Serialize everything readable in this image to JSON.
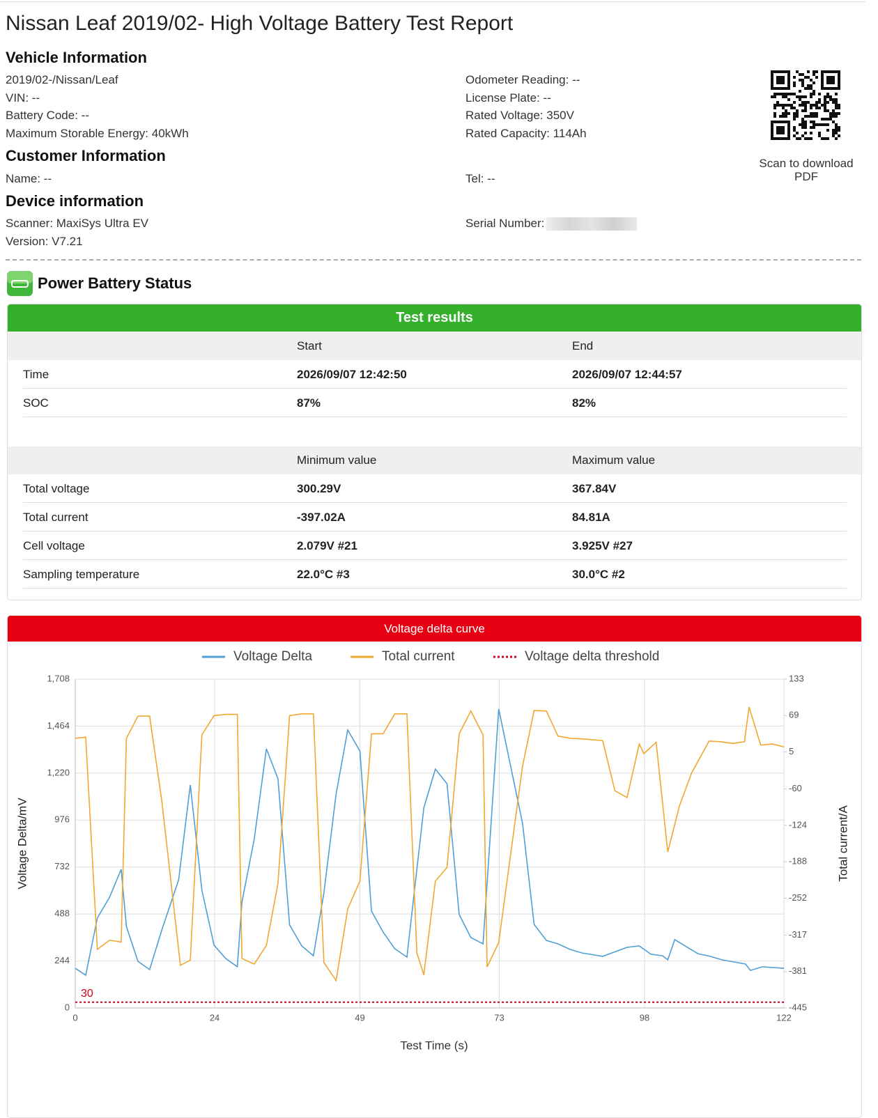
{
  "header": {
    "title": "Nissan Leaf 2019/02- High Voltage Battery Test Report"
  },
  "sections": [
    {
      "heading": "Vehicle Information",
      "left": [
        "2019/02-/Nissan/Leaf",
        "VIN: --",
        "Battery Code: --",
        "Maximum Storable Energy: 40kWh"
      ],
      "right": [
        "Odometer Reading: --",
        "License Plate: --",
        "Rated Voltage: 350V",
        "Rated Capacity: 114Ah"
      ]
    },
    {
      "heading": "Customer Information",
      "left": [
        "Name: --"
      ],
      "right": [
        "Tel: --"
      ]
    },
    {
      "heading": "Device information",
      "left": [
        "Scanner: MaxiSys Ultra EV",
        "Version: V7.21"
      ],
      "right": [
        "Serial Number:"
      ]
    }
  ],
  "qr": {
    "caption": "Scan to download PDF"
  },
  "status": {
    "title": "Power Battery Status"
  },
  "table": {
    "title": "Test results",
    "groups": [
      {
        "header": [
          "Start",
          "End"
        ],
        "rows": [
          [
            "Time",
            "2026/09/07 12:42:50",
            "2026/09/07 12:44:57"
          ],
          [
            "SOC",
            "87%",
            "82%"
          ]
        ]
      },
      {
        "header": [
          "Minimum value",
          "Maximum value"
        ],
        "rows": [
          [
            "Total voltage",
            "300.29V",
            "367.84V"
          ],
          [
            "Total current",
            "-397.02A",
            "84.81A"
          ],
          [
            "Cell voltage",
            "2.079V  #21",
            "3.925V  #27"
          ],
          [
            "Sampling temperature",
            "22.0°C  #3",
            "30.0°C  #2"
          ]
        ]
      }
    ]
  },
  "chart_data": {
    "type": "line",
    "title": "Voltage delta curve",
    "x_label": "Test Time (s)",
    "y_label": "Voltage Delta/mV",
    "y2_label": "Total current/A",
    "xlim": [
      0,
      122
    ],
    "xticks": [
      0,
      24,
      49,
      73,
      98,
      122
    ],
    "ylim": [
      0,
      1708
    ],
    "yticks": [
      0,
      244,
      488,
      732,
      976,
      {
        "value": 1220,
        "label": "1,220"
      },
      {
        "value": 1464,
        "label": "1,464"
      },
      {
        "value": 1708,
        "label": "1,708"
      }
    ],
    "y2lim": [
      -445,
      133
    ],
    "y2ticks": [
      -445,
      -381,
      -317,
      -252,
      -188,
      -124,
      -60,
      5,
      69,
      133
    ],
    "grid": true,
    "series": [
      {
        "name": "Voltage Delta",
        "color": "#4f9fd4",
        "x": [
          0,
          1.8,
          3.8,
          5.9,
          7.9,
          8.8,
          10.8,
          12.8,
          14.9,
          17.8,
          19.8,
          21.8,
          23.9,
          25.9,
          27.9,
          28.7,
          30.8,
          32.9,
          34.9,
          36.9,
          39.0,
          41.0,
          42.8,
          44.9,
          46.9,
          49.0,
          51.0,
          53.0,
          55.0,
          57.1,
          60.0,
          62.0,
          64.0,
          66.1,
          68.1,
          70.2,
          72.9,
          77.0,
          79.0,
          81.1,
          83.1,
          85.2,
          87.2,
          90.8,
          95.0,
          97.1,
          99.1,
          101.1,
          102.0,
          103.2,
          105.2,
          107.2,
          109.3,
          111.3,
          113.4,
          115.4,
          116.2,
          118.3,
          122
        ],
        "values": [
          206,
          170,
          467,
          575,
          720,
          423,
          242,
          199,
          405,
          666,
          1158,
          612,
          326,
          257,
          214,
          550,
          876,
          1346,
          1191,
          431,
          322,
          271,
          597,
          1111,
          1444,
          1335,
          503,
          394,
          308,
          264,
          1039,
          1241,
          1165,
          485,
          366,
          333,
          1553,
          959,
          434,
          351,
          333,
          304,
          286,
          268,
          315,
          322,
          279,
          271,
          250,
          355,
          318,
          282,
          268,
          250,
          239,
          228,
          195,
          214,
          206
        ]
      },
      {
        "name": "Total current",
        "color": "#f0a830",
        "axis": "y2",
        "x": [
          0,
          1.8,
          3.8,
          5.9,
          7.9,
          8.8,
          10.8,
          12.8,
          14.9,
          18.1,
          19.8,
          21.8,
          23.9,
          25.9,
          27.9,
          28.7,
          30.8,
          32.9,
          34.9,
          36.9,
          39.0,
          41.0,
          42.8,
          44.9,
          46.9,
          49.0,
          51.0,
          53.0,
          55.0,
          57.1,
          58.8,
          60.0,
          62.0,
          64.0,
          66.1,
          68.1,
          70.2,
          70.9,
          72.9,
          77.0,
          79.0,
          81.1,
          83.1,
          85.2,
          87.2,
          90.8,
          92.9,
          95.0,
          97.1,
          97.9,
          100.0,
          102.0,
          104.0,
          106.1,
          109.1,
          111.1,
          113.2,
          115.2,
          116.0,
          118.0,
          120.0,
          122
        ],
        "values": [
          29,
          31,
          -342,
          -326,
          -329,
          29,
          68,
          68,
          -81,
          -370,
          -361,
          35,
          69,
          71,
          71,
          -358,
          -368,
          -335,
          -226,
          69,
          72,
          72,
          -365,
          -397,
          -271,
          -222,
          37,
          37,
          72,
          72,
          -348,
          -387,
          -222,
          -198,
          37,
          77,
          35,
          -373,
          -330,
          -20,
          78,
          77,
          33,
          29,
          28,
          25,
          -63,
          -75,
          19,
          2,
          22,
          -171,
          -90,
          -32,
          24,
          23,
          20,
          23,
          84,
          17,
          19,
          14
        ]
      }
    ],
    "threshold": {
      "name": "Voltage delta threshold",
      "color": "#d0021b",
      "value": 30
    }
  }
}
